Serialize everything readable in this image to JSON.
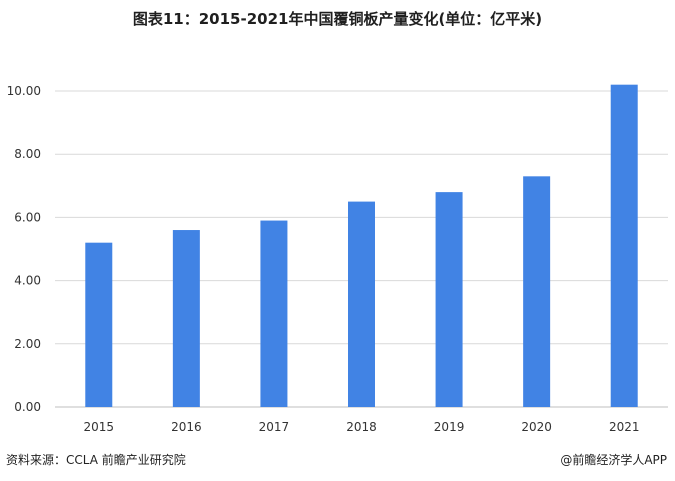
{
  "title": "图表11：2015-2021年中国覆铜板产量变化(单位：亿平米)",
  "footer": {
    "source": "资料来源：CCLA 前瞻产业研究院",
    "credit": "@前瞻经济学人APP"
  },
  "colors": {
    "bar": "#4183e4",
    "grid": "#d9d9d9",
    "axis": "#bfbfbf"
  },
  "chart_data": {
    "type": "bar",
    "categories": [
      "2015",
      "2016",
      "2017",
      "2018",
      "2019",
      "2020",
      "2021"
    ],
    "values": [
      5.2,
      5.6,
      5.9,
      6.5,
      6.8,
      7.3,
      10.2
    ],
    "ylim": [
      0,
      11
    ],
    "yticks": [
      "0.00",
      "2.00",
      "4.00",
      "6.00",
      "8.00",
      "10.00"
    ],
    "grid": true,
    "legend": "none"
  }
}
